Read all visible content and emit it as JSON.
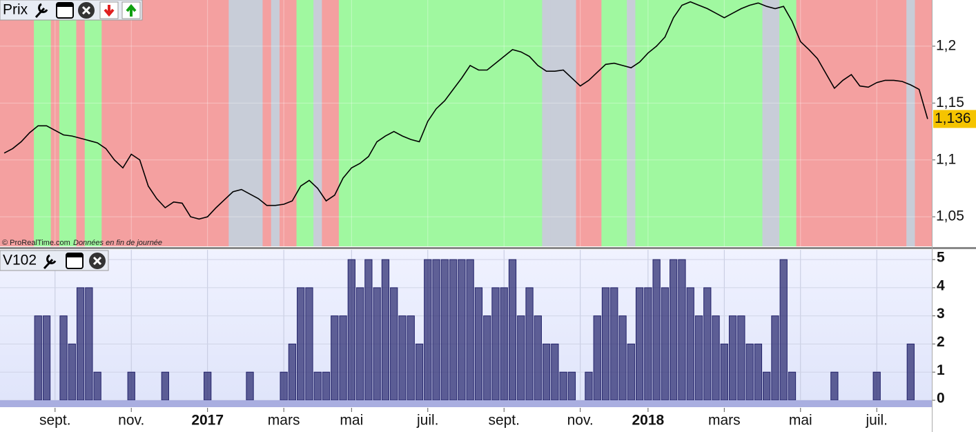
{
  "chart_data": [
    {
      "type": "line",
      "title": "Prix",
      "color": "#000000",
      "credit": "© ProRealTime.com",
      "credit_note": "Données en fin de journée",
      "categories": [
        null,
        null,
        null,
        null,
        null,
        null,
        "sept.",
        null,
        null,
        null,
        null,
        null,
        null,
        null,
        null,
        "nov.",
        null,
        null,
        null,
        null,
        null,
        null,
        null,
        null,
        "2017",
        null,
        null,
        null,
        null,
        null,
        null,
        null,
        null,
        "mars",
        null,
        null,
        null,
        null,
        null,
        null,
        null,
        "mai",
        null,
        null,
        null,
        null,
        null,
        null,
        null,
        null,
        "juil.",
        null,
        null,
        null,
        null,
        null,
        null,
        null,
        null,
        "sept.",
        null,
        null,
        null,
        null,
        null,
        null,
        null,
        null,
        "nov.",
        null,
        null,
        null,
        null,
        null,
        null,
        null,
        "2018",
        null,
        null,
        null,
        null,
        null,
        null,
        null,
        null,
        "mars",
        null,
        null,
        null,
        null,
        null,
        null,
        null,
        null,
        "mai",
        null,
        null,
        null,
        null,
        null,
        null,
        null,
        null,
        "juil.",
        null,
        null,
        null,
        null,
        null,
        null
      ],
      "values": [
        1.106,
        1.11,
        1.116,
        1.124,
        1.13,
        1.13,
        1.126,
        1.122,
        1.121,
        1.119,
        1.117,
        1.115,
        1.11,
        1.1,
        1.093,
        1.105,
        1.1,
        1.077,
        1.066,
        1.058,
        1.063,
        1.062,
        1.05,
        1.048,
        1.05,
        1.058,
        1.065,
        1.072,
        1.074,
        1.07,
        1.066,
        1.06,
        1.06,
        1.061,
        1.064,
        1.077,
        1.082,
        1.075,
        1.064,
        1.069,
        1.084,
        1.093,
        1.097,
        1.103,
        1.116,
        1.121,
        1.125,
        1.121,
        1.118,
        1.116,
        1.134,
        1.145,
        1.152,
        1.162,
        1.172,
        1.183,
        1.179,
        1.179,
        1.185,
        1.191,
        1.197,
        1.195,
        1.191,
        1.183,
        1.178,
        1.178,
        1.179,
        1.172,
        1.165,
        1.17,
        1.177,
        1.184,
        1.185,
        1.183,
        1.181,
        1.186,
        1.194,
        1.2,
        1.208,
        1.225,
        1.236,
        1.239,
        1.236,
        1.233,
        1.229,
        1.225,
        1.229,
        1.233,
        1.236,
        1.238,
        1.235,
        1.233,
        1.235,
        1.222,
        1.204,
        1.197,
        1.189,
        1.176,
        1.163,
        1.17,
        1.175,
        1.165,
        1.164,
        1.168,
        1.17,
        1.17,
        1.169,
        1.166,
        1.162,
        1.136
      ],
      "band_colors": [
        "#f4a0a0",
        "#f4a0a0",
        "#f4a0a0",
        "#f4a0a0",
        "#a0f8a0",
        "#a0f8a0",
        "#f4a0a0",
        "#a0f8a0",
        "#a0f8a0",
        "#f4a0a0",
        "#a0f8a0",
        "#a0f8a0",
        "#f4a0a0",
        "#f4a0a0",
        "#f4a0a0",
        "#f4a0a0",
        "#f4a0a0",
        "#f4a0a0",
        "#f4a0a0",
        "#f4a0a0",
        "#f4a0a0",
        "#f4a0a0",
        "#f4a0a0",
        "#f4a0a0",
        "#f4a0a0",
        "#f4a0a0",
        "#f4a0a0",
        "#c8cdd8",
        "#c8cdd8",
        "#c8cdd8",
        "#c8cdd8",
        "#f4a0a0",
        "#c8cdd8",
        "#f4a0a0",
        "#f4a0a0",
        "#a0f8a0",
        "#a0f8a0",
        "#c8cdd8",
        "#f4a0a0",
        "#f4a0a0",
        "#a0f8a0",
        "#a0f8a0",
        "#a0f8a0",
        "#a0f8a0",
        "#a0f8a0",
        "#a0f8a0",
        "#a0f8a0",
        "#a0f8a0",
        "#a0f8a0",
        "#a0f8a0",
        "#a0f8a0",
        "#a0f8a0",
        "#a0f8a0",
        "#a0f8a0",
        "#a0f8a0",
        "#a0f8a0",
        "#a0f8a0",
        "#a0f8a0",
        "#a0f8a0",
        "#a0f8a0",
        "#a0f8a0",
        "#a0f8a0",
        "#a0f8a0",
        "#a0f8a0",
        "#c8cdd8",
        "#c8cdd8",
        "#c8cdd8",
        "#c8cdd8",
        "#f4a0a0",
        "#f4a0a0",
        "#f4a0a0",
        "#a0f8a0",
        "#a0f8a0",
        "#a0f8a0",
        "#c8cdd8",
        "#a0f8a0",
        "#a0f8a0",
        "#a0f8a0",
        "#a0f8a0",
        "#a0f8a0",
        "#a0f8a0",
        "#a0f8a0",
        "#a0f8a0",
        "#a0f8a0",
        "#a0f8a0",
        "#a0f8a0",
        "#a0f8a0",
        "#a0f8a0",
        "#a0f8a0",
        "#a0f8a0",
        "#c8cdd8",
        "#c8cdd8",
        "#a0f8a0",
        "#a0f8a0",
        "#f4a0a0",
        "#f4a0a0",
        "#f4a0a0",
        "#f4a0a0",
        "#f4a0a0",
        "#f4a0a0",
        "#f4a0a0",
        "#f4a0a0",
        "#f4a0a0",
        "#f4a0a0",
        "#f4a0a0",
        "#f4a0a0",
        "#f4a0a0",
        "#c8cdd8",
        "#f4a0a0",
        "#f4a0a0"
      ],
      "last_value": {
        "value": 1.136,
        "label": "1,136"
      },
      "ylim": [
        1.024,
        1.2406
      ],
      "yticks": [
        {
          "value": 1.05,
          "label": "1,05"
        },
        {
          "value": 1.1,
          "label": "1,1"
        },
        {
          "value": 1.15,
          "label": "1,15"
        },
        {
          "value": 1.2,
          "label": "1,2"
        }
      ]
    },
    {
      "type": "bar",
      "title": "V102",
      "color": "#22226a",
      "values": [
        0,
        0,
        0,
        0,
        3,
        3,
        0,
        3,
        2,
        4,
        4,
        1,
        0,
        0,
        0,
        1,
        0,
        0,
        0,
        1,
        0,
        0,
        0,
        0,
        1,
        0,
        0,
        0,
        0,
        1,
        0,
        0,
        0,
        1,
        2,
        4,
        4,
        1,
        1,
        3,
        3,
        5,
        4,
        5,
        4,
        5,
        4,
        3,
        3,
        2,
        5,
        5,
        5,
        5,
        5,
        5,
        4,
        3,
        4,
        4,
        5,
        3,
        4,
        3,
        2,
        2,
        1,
        1,
        0,
        1,
        3,
        4,
        4,
        3,
        2,
        4,
        4,
        5,
        4,
        5,
        5,
        4,
        3,
        4,
        3,
        2,
        3,
        3,
        2,
        2,
        1,
        3,
        5,
        1,
        0,
        0,
        0,
        0,
        1,
        0,
        0,
        0,
        0,
        1,
        0,
        0,
        0,
        2,
        0,
        0
      ],
      "ylim": [
        0,
        5.2
      ],
      "yticks": [
        0,
        1,
        2,
        3,
        4,
        5
      ],
      "grid": true
    }
  ]
}
